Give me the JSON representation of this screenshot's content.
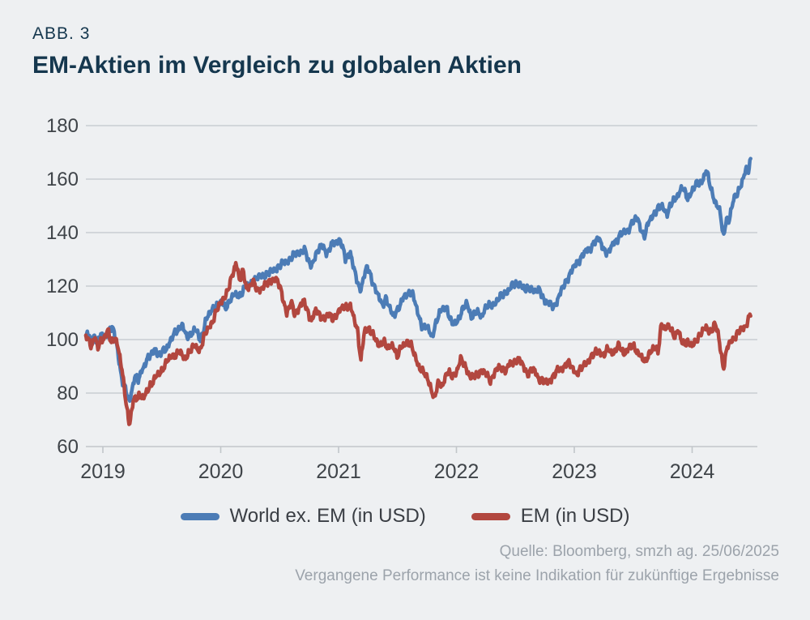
{
  "figure_label": "ABB. 3",
  "title": "EM-Aktien im Vergleich zu globalen Aktien",
  "source": {
    "line1": "Quelle: Bloomberg, smzh ag. 25/06/2025",
    "line2": "Vergangene Performance ist keine Indikation für zukünftige Ergebnisse"
  },
  "colors": {
    "background": "#eef0f2",
    "title": "#15374e",
    "axis_text": "#3f4449",
    "gridline": "#c9cdd1",
    "axis_line": "#c2c6ca",
    "world": "#4c7cb6",
    "em": "#b2473f",
    "legend_text": "#3a3e44",
    "source_text": "#9ca3ab"
  },
  "chart_data": {
    "type": "line",
    "grid": "horizontal",
    "legend_position": "bottom",
    "x_axis": {
      "unit": "year",
      "tick_labels": [
        "2019",
        "2020",
        "2021",
        "2022",
        "2023",
        "2024"
      ],
      "tick_positions": [
        2019,
        2020,
        2021,
        2022,
        2023,
        2024
      ],
      "data_range": [
        2018.856,
        2024.5
      ]
    },
    "y_axis": {
      "tick_labels": [
        180,
        160,
        140,
        120,
        100,
        80,
        60
      ],
      "range": [
        60,
        180
      ]
    },
    "series": [
      {
        "name": "World ex. EM (in USD)",
        "color_key": "world",
        "points": [
          [
            2018.856,
            100.5
          ],
          [
            2018.87,
            102
          ],
          [
            2018.9,
            99.5
          ],
          [
            2018.93,
            102
          ],
          [
            2018.955,
            98.5
          ],
          [
            2018.98,
            101.5
          ],
          [
            2019.01,
            101.5
          ],
          [
            2019.05,
            103
          ],
          [
            2019.08,
            104.5
          ],
          [
            2019.12,
            98
          ],
          [
            2019.16,
            85
          ],
          [
            2019.225,
            77
          ],
          [
            2019.27,
            86
          ],
          [
            2019.3,
            84.5
          ],
          [
            2019.33,
            89
          ],
          [
            2019.38,
            92.5
          ],
          [
            2019.42,
            95
          ],
          [
            2019.44,
            97.5
          ],
          [
            2019.47,
            93.5
          ],
          [
            2019.54,
            97
          ],
          [
            2019.58,
            100
          ],
          [
            2019.63,
            103.5
          ],
          [
            2019.67,
            106
          ],
          [
            2019.71,
            100.5
          ],
          [
            2019.78,
            104
          ],
          [
            2019.83,
            99.5
          ],
          [
            2019.87,
            107
          ],
          [
            2019.92,
            110.5
          ],
          [
            2019.96,
            113
          ],
          [
            2020.0,
            113.5
          ],
          [
            2020.04,
            112
          ],
          [
            2020.08,
            115
          ],
          [
            2020.12,
            116.5
          ],
          [
            2020.17,
            117
          ],
          [
            2020.21,
            119.5
          ],
          [
            2020.25,
            121
          ],
          [
            2020.33,
            123.5
          ],
          [
            2020.42,
            125
          ],
          [
            2020.5,
            127.5
          ],
          [
            2020.58,
            130
          ],
          [
            2020.65,
            132.5
          ],
          [
            2020.71,
            133.5
          ],
          [
            2020.76,
            127.5
          ],
          [
            2020.83,
            133.5
          ],
          [
            2020.87,
            135.5
          ],
          [
            2020.9,
            132
          ],
          [
            2020.96,
            136.5
          ],
          [
            2021.01,
            137.5
          ],
          [
            2021.06,
            130
          ],
          [
            2021.1,
            133
          ],
          [
            2021.13,
            126
          ],
          [
            2021.18,
            118.5
          ],
          [
            2021.24,
            127
          ],
          [
            2021.28,
            123
          ],
          [
            2021.33,
            117
          ],
          [
            2021.37,
            112.5
          ],
          [
            2021.4,
            116
          ],
          [
            2021.46,
            108.5
          ],
          [
            2021.52,
            113
          ],
          [
            2021.56,
            116
          ],
          [
            2021.62,
            118.5
          ],
          [
            2021.67,
            110
          ],
          [
            2021.71,
            105
          ],
          [
            2021.75,
            104.5
          ],
          [
            2021.79,
            101
          ],
          [
            2021.83,
            107
          ],
          [
            2021.88,
            111.5
          ],
          [
            2021.915,
            112.5
          ],
          [
            2021.96,
            105.5
          ],
          [
            2022.0,
            106.5
          ],
          [
            2022.04,
            110
          ],
          [
            2022.09,
            113.5
          ],
          [
            2022.13,
            108.5
          ],
          [
            2022.17,
            110
          ],
          [
            2022.21,
            109
          ],
          [
            2022.25,
            112
          ],
          [
            2022.29,
            112.5
          ],
          [
            2022.33,
            114
          ],
          [
            2022.38,
            116
          ],
          [
            2022.46,
            119.5
          ],
          [
            2022.54,
            121.5
          ],
          [
            2022.58,
            118
          ],
          [
            2022.63,
            120
          ],
          [
            2022.67,
            117.5
          ],
          [
            2022.71,
            118.5
          ],
          [
            2022.75,
            114.5
          ],
          [
            2022.79,
            113
          ],
          [
            2022.83,
            112.5
          ],
          [
            2022.88,
            117
          ],
          [
            2022.92,
            121
          ],
          [
            2022.96,
            124.5
          ],
          [
            2023.0,
            127
          ],
          [
            2023.04,
            130
          ],
          [
            2023.08,
            132
          ],
          [
            2023.13,
            134
          ],
          [
            2023.17,
            136.5
          ],
          [
            2023.21,
            137.5
          ],
          [
            2023.25,
            134
          ],
          [
            2023.29,
            132
          ],
          [
            2023.33,
            136
          ],
          [
            2023.38,
            138.5
          ],
          [
            2023.42,
            140
          ],
          [
            2023.46,
            141.5
          ],
          [
            2023.5,
            144
          ],
          [
            2023.54,
            145.5
          ],
          [
            2023.575,
            140
          ],
          [
            2023.6,
            138.5
          ],
          [
            2023.63,
            144
          ],
          [
            2023.67,
            147
          ],
          [
            2023.71,
            148.5
          ],
          [
            2023.75,
            150
          ],
          [
            2023.79,
            147
          ],
          [
            2023.83,
            151
          ],
          [
            2023.87,
            154
          ],
          [
            2023.92,
            156.5
          ],
          [
            2023.96,
            153
          ],
          [
            2024.0,
            155.5
          ],
          [
            2024.04,
            158
          ],
          [
            2024.08,
            159
          ],
          [
            2024.12,
            163
          ],
          [
            2024.17,
            155
          ],
          [
            2024.21,
            150
          ],
          [
            2024.24,
            147
          ],
          [
            2024.265,
            138
          ],
          [
            2024.29,
            146
          ],
          [
            2024.31,
            143.5
          ],
          [
            2024.35,
            152
          ],
          [
            2024.38,
            155
          ],
          [
            2024.42,
            158
          ],
          [
            2024.44,
            161
          ],
          [
            2024.46,
            163.5
          ],
          [
            2024.475,
            163
          ],
          [
            2024.5,
            168.5
          ]
        ]
      },
      {
        "name": "EM (in USD)",
        "color_key": "em",
        "points": [
          [
            2018.856,
            100.5
          ],
          [
            2018.87,
            101.5
          ],
          [
            2018.9,
            97.5
          ],
          [
            2018.93,
            101
          ],
          [
            2018.955,
            96.5
          ],
          [
            2018.98,
            99.5
          ],
          [
            2019.01,
            101
          ],
          [
            2019.045,
            103
          ],
          [
            2019.07,
            98.5
          ],
          [
            2019.1,
            101.5
          ],
          [
            2019.12,
            99
          ],
          [
            2019.16,
            89
          ],
          [
            2019.225,
            68
          ],
          [
            2019.26,
            77
          ],
          [
            2019.31,
            79.5
          ],
          [
            2019.35,
            78
          ],
          [
            2019.4,
            83
          ],
          [
            2019.44,
            85.5
          ],
          [
            2019.48,
            87
          ],
          [
            2019.52,
            90.5
          ],
          [
            2019.56,
            92.5
          ],
          [
            2019.6,
            94
          ],
          [
            2019.65,
            95.5
          ],
          [
            2019.69,
            92.5
          ],
          [
            2019.73,
            95.5
          ],
          [
            2019.78,
            97.5
          ],
          [
            2019.82,
            96
          ],
          [
            2019.86,
            101
          ],
          [
            2019.9,
            104.5
          ],
          [
            2019.94,
            108
          ],
          [
            2019.98,
            112
          ],
          [
            2020.02,
            115.5
          ],
          [
            2020.06,
            118
          ],
          [
            2020.1,
            124
          ],
          [
            2020.13,
            129.5
          ],
          [
            2020.16,
            122
          ],
          [
            2020.19,
            125.5
          ],
          [
            2020.22,
            119
          ],
          [
            2020.27,
            121.5
          ],
          [
            2020.31,
            118.5
          ],
          [
            2020.35,
            119.5
          ],
          [
            2020.4,
            121
          ],
          [
            2020.44,
            123
          ],
          [
            2020.48,
            122
          ],
          [
            2020.52,
            117
          ],
          [
            2020.56,
            110
          ],
          [
            2020.6,
            113.5
          ],
          [
            2020.63,
            109.5
          ],
          [
            2020.67,
            112.5
          ],
          [
            2020.71,
            114
          ],
          [
            2020.77,
            107
          ],
          [
            2020.81,
            111
          ],
          [
            2020.85,
            109
          ],
          [
            2020.88,
            107.5
          ],
          [
            2020.92,
            109.5
          ],
          [
            2020.96,
            108
          ],
          [
            2021.0,
            110
          ],
          [
            2021.05,
            113
          ],
          [
            2021.1,
            112
          ],
          [
            2021.16,
            104
          ],
          [
            2021.19,
            92
          ],
          [
            2021.22,
            103
          ],
          [
            2021.26,
            104.5
          ],
          [
            2021.3,
            101
          ],
          [
            2021.34,
            97.5
          ],
          [
            2021.38,
            100
          ],
          [
            2021.42,
            96
          ],
          [
            2021.46,
            98.5
          ],
          [
            2021.5,
            93.5
          ],
          [
            2021.54,
            97.5
          ],
          [
            2021.58,
            99.5
          ],
          [
            2021.62,
            97
          ],
          [
            2021.66,
            92.5
          ],
          [
            2021.7,
            88.5
          ],
          [
            2021.74,
            86.5
          ],
          [
            2021.78,
            83
          ],
          [
            2021.81,
            77.5
          ],
          [
            2021.85,
            84
          ],
          [
            2021.88,
            83
          ],
          [
            2021.92,
            87.5
          ],
          [
            2021.96,
            86.5
          ],
          [
            2022.0,
            88
          ],
          [
            2022.04,
            92.5
          ],
          [
            2022.08,
            90
          ],
          [
            2022.12,
            85.5
          ],
          [
            2022.16,
            86.5
          ],
          [
            2022.21,
            88.5
          ],
          [
            2022.25,
            87
          ],
          [
            2022.29,
            85
          ],
          [
            2022.33,
            88
          ],
          [
            2022.38,
            90
          ],
          [
            2022.42,
            88.5
          ],
          [
            2022.46,
            91
          ],
          [
            2022.52,
            93
          ],
          [
            2022.56,
            90.5
          ],
          [
            2022.6,
            87.5
          ],
          [
            2022.65,
            89
          ],
          [
            2022.69,
            86
          ],
          [
            2022.73,
            85
          ],
          [
            2022.77,
            83.5
          ],
          [
            2022.81,
            86
          ],
          [
            2022.85,
            88
          ],
          [
            2022.9,
            89.5
          ],
          [
            2022.94,
            91.5
          ],
          [
            2023.02,
            87.5
          ],
          [
            2023.08,
            90
          ],
          [
            2023.13,
            93
          ],
          [
            2023.17,
            94.5
          ],
          [
            2023.21,
            96
          ],
          [
            2023.25,
            94
          ],
          [
            2023.29,
            96.5
          ],
          [
            2023.33,
            95
          ],
          [
            2023.38,
            97.5
          ],
          [
            2023.42,
            95
          ],
          [
            2023.46,
            96.5
          ],
          [
            2023.5,
            97.5
          ],
          [
            2023.54,
            95.5
          ],
          [
            2023.58,
            92.5
          ],
          [
            2023.6,
            91
          ],
          [
            2023.63,
            95
          ],
          [
            2023.67,
            96.5
          ],
          [
            2023.71,
            95.5
          ],
          [
            2023.74,
            106.5
          ],
          [
            2023.77,
            103.5
          ],
          [
            2023.81,
            105
          ],
          [
            2023.85,
            101.5
          ],
          [
            2023.88,
            103
          ],
          [
            2023.92,
            98.5
          ],
          [
            2023.96,
            99.5
          ],
          [
            2024.0,
            97
          ],
          [
            2024.04,
            100.5
          ],
          [
            2024.08,
            102.5
          ],
          [
            2024.12,
            104.5
          ],
          [
            2024.16,
            103
          ],
          [
            2024.19,
            105.5
          ],
          [
            2024.22,
            102.5
          ],
          [
            2024.265,
            89.5
          ],
          [
            2024.3,
            97
          ],
          [
            2024.33,
            99.5
          ],
          [
            2024.37,
            101.5
          ],
          [
            2024.4,
            103
          ],
          [
            2024.44,
            104.5
          ],
          [
            2024.46,
            106
          ],
          [
            2024.5,
            110
          ]
        ]
      }
    ]
  }
}
